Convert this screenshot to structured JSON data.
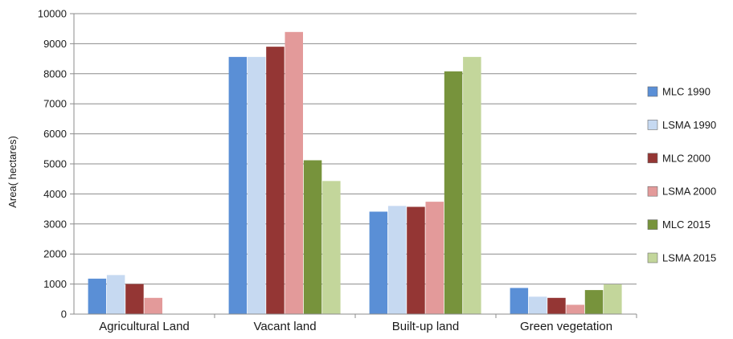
{
  "chart_data": {
    "type": "bar",
    "title": "",
    "xlabel": "",
    "ylabel": "Area( hectares)",
    "ylim": [
      0,
      10000
    ],
    "yticks": [
      0,
      1000,
      2000,
      3000,
      4000,
      5000,
      6000,
      7000,
      8000,
      9000,
      10000
    ],
    "grid": true,
    "legend_position": "right",
    "categories": [
      "Agricultural Land",
      "Vacant land",
      "Built-up land",
      "Green vegetation"
    ],
    "series": [
      {
        "name": "MLC 1990",
        "color": "#5a8fd6",
        "values": [
          1180,
          8560,
          3410,
          870
        ]
      },
      {
        "name": "LSMA 1990",
        "color": "#c6d9f1",
        "values": [
          1300,
          8560,
          3600,
          580
        ]
      },
      {
        "name": "MLC 2000",
        "color": "#943634",
        "values": [
          1000,
          8900,
          3570,
          540
        ]
      },
      {
        "name": "LSMA 2000",
        "color": "#e39a9a",
        "values": [
          540,
          9390,
          3740,
          310
        ]
      },
      {
        "name": "MLC 2015",
        "color": "#77933c",
        "values": [
          0,
          5120,
          8080,
          800
        ]
      },
      {
        "name": "LSMA 2015",
        "color": "#c3d69b",
        "values": [
          0,
          4430,
          8560,
          990
        ]
      }
    ]
  }
}
